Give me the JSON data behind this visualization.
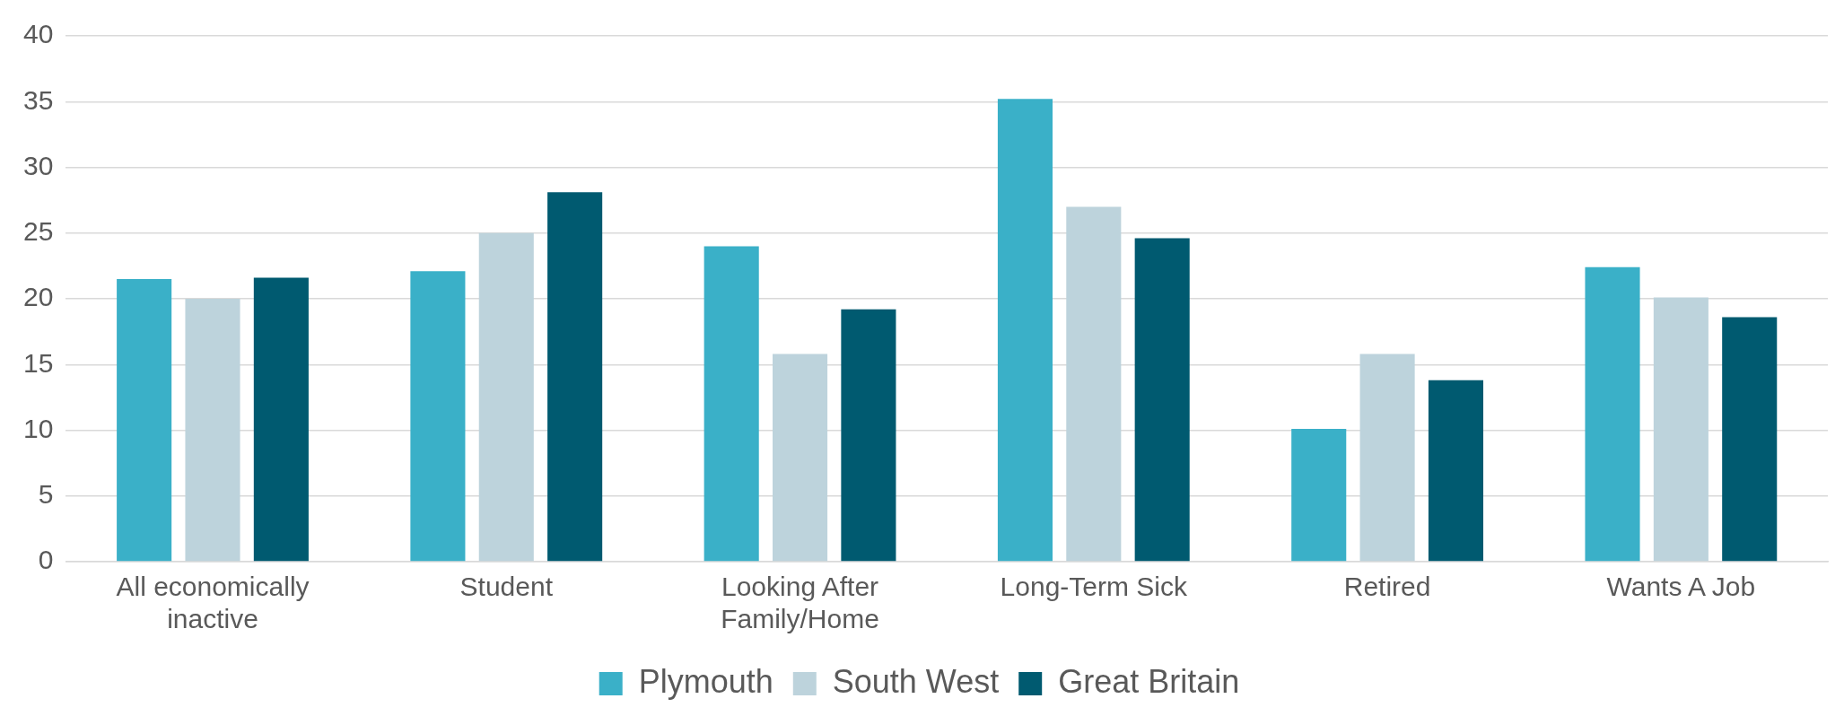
{
  "chart_data": {
    "type": "bar",
    "categories": [
      "All economically inactive",
      "Student",
      "Looking After Family/Home",
      "Long-Term Sick",
      "Retired",
      "Wants A Job"
    ],
    "series": [
      {
        "name": "Plymouth",
        "color": "#3ab0c8",
        "values": [
          21.5,
          22.1,
          24.0,
          35.2,
          10.1,
          22.4
        ]
      },
      {
        "name": "South West",
        "color": "#bdd3dc",
        "values": [
          20.0,
          25.0,
          15.8,
          27.0,
          15.8,
          20.1
        ]
      },
      {
        "name": "Great Britain",
        "color": "#005a70",
        "values": [
          21.6,
          28.1,
          19.2,
          24.6,
          13.8,
          18.6
        ]
      }
    ],
    "ylim": [
      0,
      40
    ],
    "yticks": [
      0,
      5,
      10,
      15,
      20,
      25,
      30,
      35,
      40
    ],
    "grid": "y",
    "legend": "bottom"
  }
}
